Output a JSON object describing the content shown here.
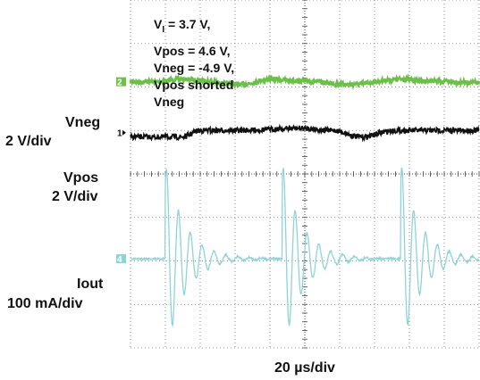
{
  "chart_data": {
    "type": "line",
    "title": "",
    "xlabel": "20 µs/div",
    "ylabel": "",
    "grid": true,
    "divisions": {
      "x": 10,
      "y": 8
    },
    "conditions": [
      "V_I = 3.7 V,",
      "Vpos = 4.6 V,",
      "Vneg = -4.9 V,",
      "Vpos shorted",
      "Vneg"
    ],
    "channels": [
      {
        "name": "Vneg",
        "scale": "2 V/div",
        "marker": "2",
        "color": "#6cc04a",
        "baseline_div": 1.88,
        "x_div": [
          0,
          0.8,
          1.4,
          3.2,
          4.0,
          4.9,
          6.3,
          7.8,
          8.4,
          10
        ],
        "y_div": [
          0,
          0,
          0.06,
          -0.06,
          0.06,
          0.02,
          -0.06,
          0.06,
          0.02,
          -0.02
        ]
      },
      {
        "name": "Vpos",
        "scale": "2 V/div",
        "marker": "1",
        "color": "#111111",
        "baseline_div": 3.05,
        "x_div": [
          0,
          1.5,
          2.0,
          3.0,
          4.9,
          5.8,
          6.6,
          7.6,
          10
        ],
        "y_div": [
          -0.1,
          -0.1,
          0.05,
          0.05,
          0.1,
          0.05,
          -0.1,
          0.05,
          0.05
        ]
      },
      {
        "name": "Iout",
        "scale": "100 mA/div",
        "marker": "4",
        "color": "#8fd3d8",
        "baseline_div": 5.95,
        "bursts_div": [
          1.0,
          4.35,
          7.75
        ]
      }
    ]
  },
  "labels": {
    "cond_line1_sub": "I",
    "cond_line1_rest": " = 3.7 V,",
    "cond_line1_prefix": "V"
  }
}
